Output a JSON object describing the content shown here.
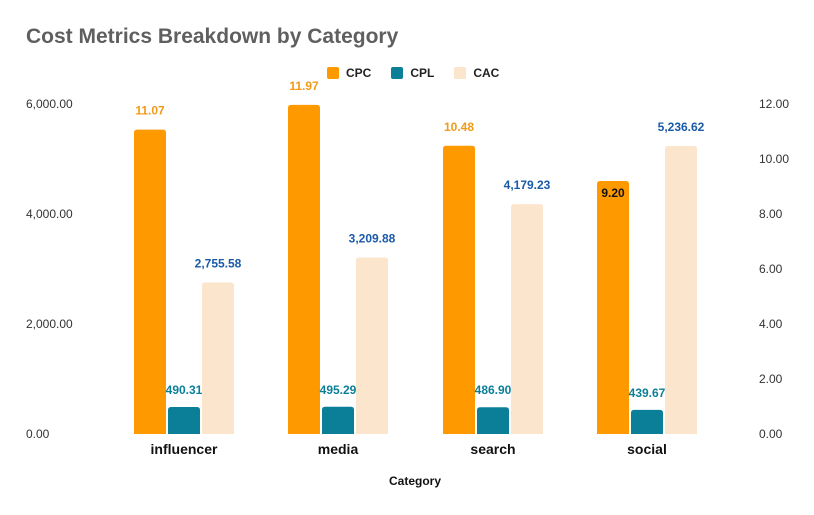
{
  "chart_data": {
    "type": "bar",
    "title": "Cost Metrics Breakdown by Category",
    "xlabel": "Category",
    "categories": [
      "influencer",
      "media",
      "search",
      "social"
    ],
    "series": [
      {
        "name": "CPC",
        "axis": "right",
        "color": "#ff9900",
        "label_color": "#f19a18",
        "values": [
          11.07,
          11.97,
          10.48,
          9.2
        ],
        "labels": [
          "11.07",
          "11.97",
          "10.48",
          "9.20"
        ]
      },
      {
        "name": "CPL",
        "axis": "left",
        "color": "#0b7f98",
        "label_color": "#0b7f98",
        "values": [
          490.31,
          495.29,
          486.9,
          439.67
        ],
        "labels": [
          "490.31",
          "495.29",
          "486.90",
          "439.67"
        ]
      },
      {
        "name": "CAC",
        "axis": "left",
        "color": "#fce5cd",
        "label_color": "#1a5aa8",
        "values": [
          2755.58,
          3209.88,
          4179.23,
          5236.62
        ],
        "labels": [
          "2,755.58",
          "3,209.88",
          "4,179.23",
          "5,236.62"
        ]
      }
    ],
    "y_left": {
      "ylim": [
        0,
        6000
      ],
      "ticks": [
        "0.00",
        "2,000.00",
        "4,000.00",
        "6,000.00"
      ],
      "tick_values": [
        0,
        2000,
        4000,
        6000
      ]
    },
    "y_right": {
      "ylim": [
        0,
        12
      ],
      "ticks": [
        "0.00",
        "2.00",
        "4.00",
        "6.00",
        "8.00",
        "10.00",
        "12.00"
      ],
      "tick_values": [
        0,
        2,
        4,
        6,
        8,
        10,
        12
      ]
    },
    "legend_position": "top-center",
    "grid": false
  }
}
